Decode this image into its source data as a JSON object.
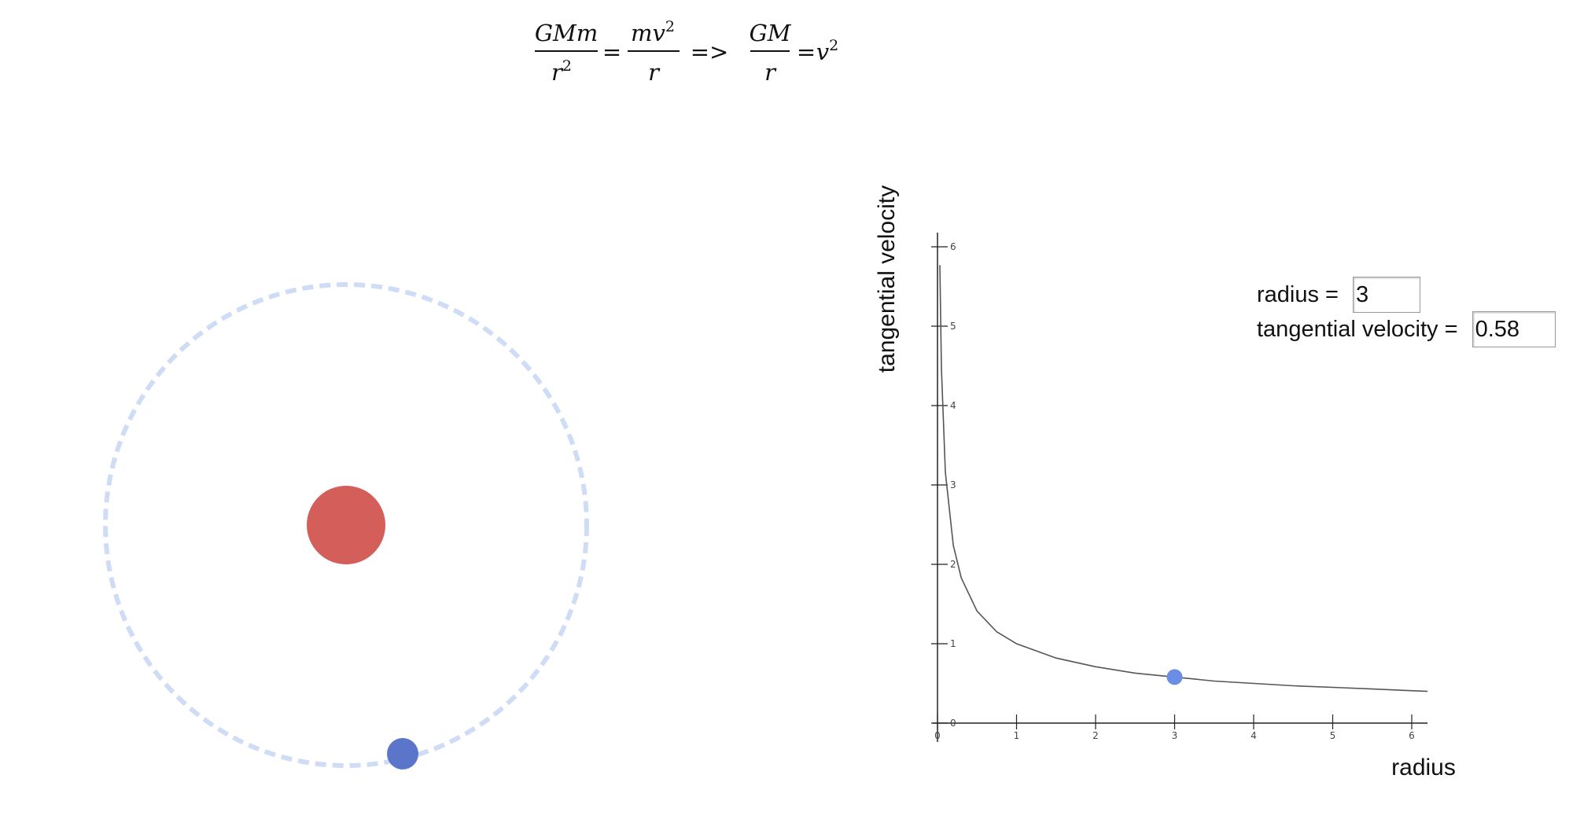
{
  "formula": {
    "lhs_num": "GMm",
    "lhs_den_var": "r",
    "lhs_den_exp": "2",
    "mid_num_var": "mv",
    "mid_num_exp": "2",
    "mid_den": "r",
    "eq1": "=",
    "implies": "=>",
    "rhs_num": "GM",
    "rhs_den": "r",
    "eq2": "=",
    "rhs_var": "v",
    "rhs_exp": "2",
    "highlight_color": "#4aa84a"
  },
  "orbit": {
    "central_body_color": "#d45e5a",
    "satellite_color": "#5a75c9",
    "orbit_path_color": "#cfdcf5",
    "radius": 3
  },
  "controls": {
    "radius_label": "radius = ",
    "radius_value": "3",
    "velocity_label": "tangential velocity = ",
    "velocity_value": "0.58"
  },
  "chart_data": {
    "type": "line",
    "function": "v = 1/sqrt(r)",
    "xlabel": "radius",
    "ylabel": "tangential velocity",
    "xlim": [
      0,
      6.2
    ],
    "ylim": [
      0,
      6.1
    ],
    "x_ticks": [
      "0",
      "1",
      "2",
      "3",
      "4",
      "5",
      "6"
    ],
    "y_ticks": [
      "0",
      "1",
      "2",
      "3",
      "4",
      "5",
      "6"
    ],
    "series": [
      {
        "x": [
          0.03,
          0.05,
          0.1,
          0.2,
          0.3,
          0.5,
          0.75,
          1,
          1.5,
          2,
          2.5,
          3,
          3.5,
          4,
          4.5,
          5,
          5.5,
          6.2
        ],
        "values": [
          5.77,
          4.47,
          3.16,
          2.24,
          1.83,
          1.41,
          1.15,
          1.0,
          0.82,
          0.71,
          0.63,
          0.58,
          0.53,
          0.5,
          0.47,
          0.45,
          0.43,
          0.4
        ]
      }
    ],
    "highlight_point": {
      "x": 3,
      "y": 0.58,
      "color": "#6a8ee6"
    },
    "line_color": "#555555"
  }
}
